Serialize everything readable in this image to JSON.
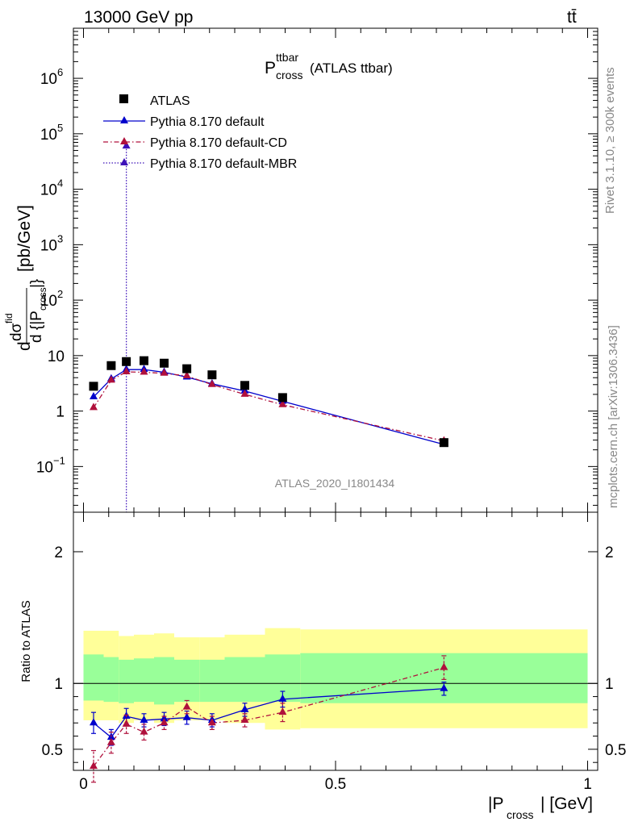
{
  "header": {
    "left": "13000 GeV pp",
    "right": "tt̄"
  },
  "title": {
    "main": "P",
    "sup": "ttbar",
    "sub": "cross",
    "suffix": " (ATLAS ttbar)"
  },
  "side_labels": {
    "rivet": "Rivet 3.1.10, ≥ 300k events",
    "mcplots": "mcplots.cern.ch [arXiv:1306.3436]"
  },
  "watermark": "ATLAS_2020_I1801434",
  "chart_data": [
    {
      "type": "scatter",
      "panel": "main",
      "yscale": "log",
      "ylim": [
        0.015,
        8000000
      ],
      "xlim": [
        -0.02,
        1.02
      ],
      "ylabel_parts": {
        "lead": "d",
        "num": "dσ",
        "num_sup": "fid",
        "den": "d {|P",
        "den_sub": "cross",
        "den_tail": "|}",
        "unit": "[pb/GeV]"
      },
      "yticks": [
        {
          "v": 0.1,
          "label": "10",
          "sup": "−1"
        },
        {
          "v": 1,
          "label": "1",
          "sup": ""
        },
        {
          "v": 10,
          "label": "10",
          "sup": ""
        },
        {
          "v": 100,
          "label": "10",
          "sup": "2"
        },
        {
          "v": 1000,
          "label": "10",
          "sup": "3"
        },
        {
          "v": 10000,
          "label": "10",
          "sup": "4"
        },
        {
          "v": 100000,
          "label": "10",
          "sup": "5"
        },
        {
          "v": 1000000,
          "label": "10",
          "sup": "6"
        }
      ],
      "legend": [
        {
          "label": "ATLAS",
          "marker": "square",
          "color": "#000000",
          "line": "none"
        },
        {
          "label": "Pythia 8.170 default",
          "marker": "triangle",
          "color": "#0000cc",
          "line": "solid"
        },
        {
          "label": "Pythia 8.170 default-CD",
          "marker": "triangle",
          "color": "#b0103c",
          "line": "dashdot"
        },
        {
          "label": "Pythia 8.170 default-MBR",
          "marker": "triangle",
          "color": "#3c10b8",
          "line": "dotted"
        }
      ],
      "data": {
        "x": [
          0.02,
          0.055,
          0.085,
          0.12,
          0.16,
          0.205,
          0.255,
          0.32,
          0.395,
          0.715
        ],
        "y": [
          2.8,
          6.6,
          7.8,
          8.1,
          7.3,
          5.8,
          4.5,
          2.9,
          1.75,
          0.27
        ]
      },
      "series": [
        {
          "name": "Pythia 8.170 default",
          "x": [
            0.02,
            0.055,
            0.085,
            0.12,
            0.16,
            0.205,
            0.255,
            0.32,
            0.395,
            0.715
          ],
          "y": [
            1.8,
            3.8,
            5.6,
            5.6,
            5.0,
            4.1,
            3.1,
            2.3,
            1.5,
            0.25
          ]
        },
        {
          "name": "Pythia 8.170 default-CD",
          "x": [
            0.02,
            0.055,
            0.085,
            0.12,
            0.16,
            0.205,
            0.255,
            0.32,
            0.395,
            0.715
          ],
          "y": [
            1.15,
            3.6,
            5.1,
            5.0,
            4.8,
            4.3,
            3.0,
            2.0,
            1.3,
            0.29
          ]
        }
      ],
      "mbr_spike_x": 0.085
    },
    {
      "type": "scatter",
      "panel": "ratio",
      "ylim": [
        0.34,
        2.3
      ],
      "xlim": [
        -0.02,
        1.02
      ],
      "ylabel": "Ratio to ATLAS",
      "xlabel_parts": {
        "pre": "|P",
        "sub": "cross",
        "post": "| [GeV]"
      },
      "yticks": [
        0.5,
        1,
        2
      ],
      "ytick_labels": [
        "0.5",
        "1",
        "2"
      ],
      "xticks": [
        0,
        0.5,
        1
      ],
      "xtick_labels": [
        "0",
        "0.5",
        "1"
      ],
      "bands": {
        "edges": [
          0.0,
          0.04,
          0.07,
          0.1,
          0.14,
          0.18,
          0.23,
          0.28,
          0.36,
          0.43,
          1.0
        ],
        "green": [
          [
            0.87,
            1.22
          ],
          [
            0.86,
            1.2
          ],
          [
            0.85,
            1.18
          ],
          [
            0.86,
            1.19
          ],
          [
            0.84,
            1.2
          ],
          [
            0.86,
            1.18
          ],
          [
            0.86,
            1.18
          ],
          [
            0.86,
            1.2
          ],
          [
            0.86,
            1.22
          ],
          [
            0.85,
            1.23
          ]
        ],
        "yellow": [
          [
            0.72,
            1.4
          ],
          [
            0.72,
            1.4
          ],
          [
            0.7,
            1.36
          ],
          [
            0.72,
            1.37
          ],
          [
            0.7,
            1.38
          ],
          [
            0.72,
            1.35
          ],
          [
            0.72,
            1.35
          ],
          [
            0.7,
            1.37
          ],
          [
            0.65,
            1.42
          ],
          [
            0.66,
            1.41
          ]
        ]
      },
      "series": [
        {
          "name": "Pythia 8.170 default",
          "x": [
            0.02,
            0.055,
            0.085,
            0.12,
            0.16,
            0.205,
            0.255,
            0.32,
            0.395,
            0.715
          ],
          "y": [
            0.7,
            0.59,
            0.75,
            0.72,
            0.73,
            0.74,
            0.72,
            0.8,
            0.88,
            0.96
          ],
          "err": [
            0.08,
            0.06,
            0.06,
            0.05,
            0.05,
            0.05,
            0.05,
            0.05,
            0.06,
            0.05
          ]
        },
        {
          "name": "Pythia 8.170 default-CD",
          "x": [
            0.02,
            0.055,
            0.085,
            0.12,
            0.16,
            0.205,
            0.255,
            0.32,
            0.395,
            0.715
          ],
          "y": [
            0.37,
            0.55,
            0.69,
            0.63,
            0.7,
            0.82,
            0.7,
            0.72,
            0.78,
            1.12
          ],
          "err": [
            0.12,
            0.08,
            0.07,
            0.06,
            0.05,
            0.05,
            0.05,
            0.05,
            0.07,
            0.09
          ]
        }
      ]
    }
  ]
}
